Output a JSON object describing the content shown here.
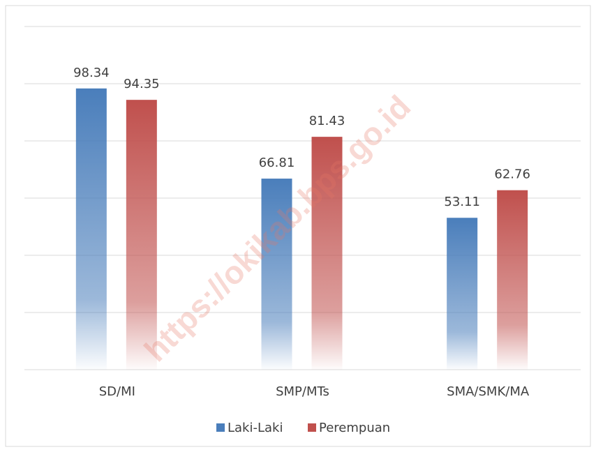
{
  "chart_data": {
    "type": "bar",
    "categories": [
      "SD/MI",
      "SMP/MTs",
      "SMA/SMK/MA"
    ],
    "series": [
      {
        "name": "Laki-Laki",
        "color": "#4a7ebb",
        "values": [
          98.34,
          66.81,
          53.11
        ]
      },
      {
        "name": "Perempuan",
        "color": "#c0504d",
        "values": [
          94.35,
          81.43,
          62.76
        ]
      }
    ],
    "ylim": [
      0,
      120
    ],
    "yticks": [
      0,
      20,
      40,
      60,
      80,
      100,
      120
    ],
    "grid": true,
    "legend": "bottom",
    "watermark": "https://okikab.bps.go.id"
  }
}
